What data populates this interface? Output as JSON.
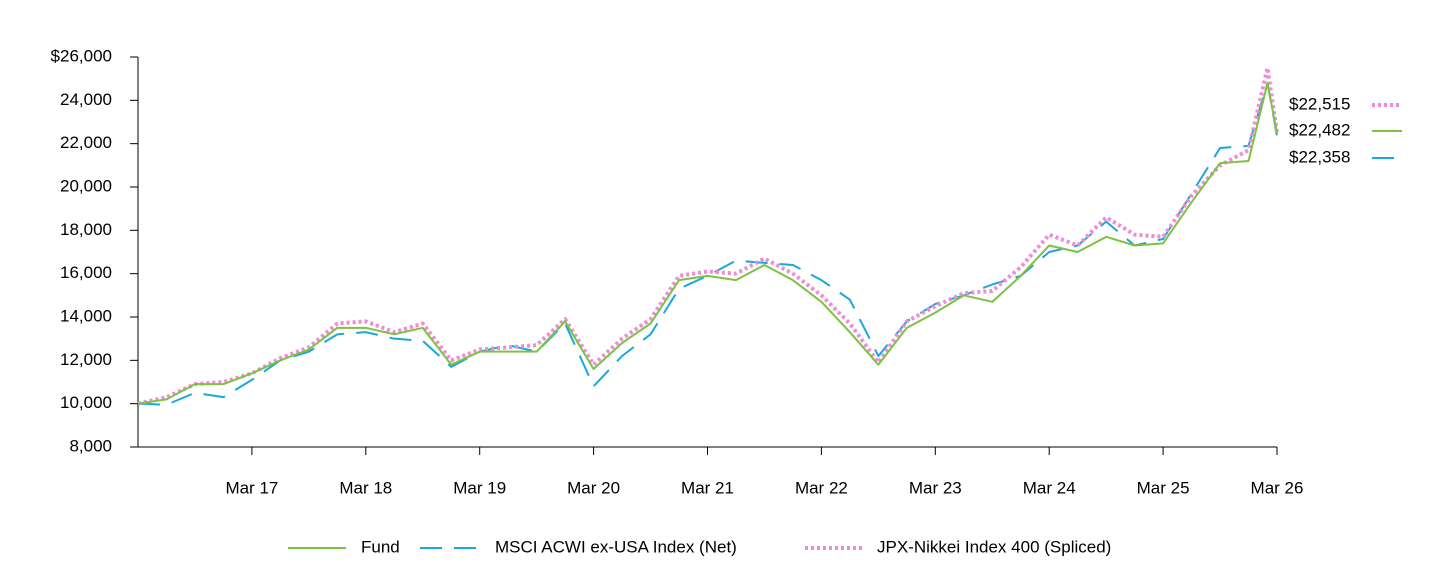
{
  "chart_data": {
    "type": "line",
    "x": [
      0,
      3,
      6,
      9,
      12,
      15,
      18,
      21,
      24,
      27,
      30,
      33,
      36,
      39,
      42,
      45,
      48,
      51,
      54,
      57,
      60,
      63,
      66,
      69,
      72,
      75,
      78,
      81,
      84,
      87,
      90,
      93,
      96,
      99,
      102,
      105,
      108,
      111,
      114,
      117,
      119,
      120
    ],
    "xlim": [
      0,
      120
    ],
    "xticks": [
      {
        "value": 12,
        "label": "Mar 17"
      },
      {
        "value": 24,
        "label": "Mar 18"
      },
      {
        "value": 36,
        "label": "Mar 19"
      },
      {
        "value": 48,
        "label": "Mar 20"
      },
      {
        "value": 60,
        "label": "Mar 21"
      },
      {
        "value": 72,
        "label": "Mar 22"
      },
      {
        "value": 84,
        "label": "Mar 23"
      },
      {
        "value": 96,
        "label": "Mar 24"
      },
      {
        "value": 108,
        "label": "Mar 25"
      },
      {
        "value": 120,
        "label": "Mar 26"
      }
    ],
    "ylim": [
      8000,
      26000
    ],
    "yticks": [
      {
        "value": 8000,
        "label": "8,000"
      },
      {
        "value": 10000,
        "label": "10,000"
      },
      {
        "value": 12000,
        "label": "12,000"
      },
      {
        "value": 14000,
        "label": "14,000"
      },
      {
        "value": 16000,
        "label": "16,000"
      },
      {
        "value": 18000,
        "label": "18,000"
      },
      {
        "value": 20000,
        "label": "20,000"
      },
      {
        "value": 22000,
        "label": "22,000"
      },
      {
        "value": 24000,
        "label": "24,000"
      },
      {
        "value": 26000,
        "label": "$26,000"
      }
    ],
    "grid": false,
    "series": [
      {
        "name": "Fund",
        "color": "#7dc242",
        "style": "solid",
        "end_label": "$22,482",
        "values": [
          10000,
          10200,
          10900,
          10900,
          11400,
          12000,
          12500,
          13500,
          13500,
          13200,
          13500,
          11800,
          12400,
          12400,
          12400,
          13800,
          11600,
          12800,
          13700,
          15700,
          15900,
          15700,
          16400,
          15700,
          14700,
          13300,
          11800,
          13500,
          14200,
          15000,
          14700,
          15900,
          17300,
          17000,
          17700,
          17300,
          17400,
          19300,
          21100,
          21200,
          24800,
          22482
        ]
      },
      {
        "name": "MSCI ACWI ex-USA Index (Net)",
        "color": "#1aa7d9",
        "style": "dashed",
        "end_label": "$22,358",
        "values": [
          10000,
          9950,
          10500,
          10300,
          11100,
          12000,
          12400,
          13200,
          13300,
          13000,
          12900,
          11700,
          12400,
          12700,
          12400,
          13700,
          10800,
          12200,
          13200,
          15300,
          15900,
          16600,
          16500,
          16400,
          15700,
          14800,
          12200,
          13800,
          14600,
          15000,
          15500,
          15900,
          17000,
          17300,
          18400,
          17300,
          17600,
          19700,
          21800,
          21900,
          24800,
          22358
        ]
      },
      {
        "name": "JPX-Nikkei Index 400 (Spliced)",
        "color": "#f08bd6",
        "style": "dotted",
        "end_label": "$22,515",
        "values": [
          10000,
          10300,
          10900,
          11000,
          11400,
          12100,
          12600,
          13700,
          13800,
          13300,
          13700,
          12000,
          12500,
          12600,
          12700,
          13900,
          11800,
          13000,
          13900,
          15900,
          16100,
          16000,
          16700,
          16000,
          15000,
          13700,
          11900,
          13800,
          14500,
          15100,
          15200,
          16300,
          17800,
          17300,
          18600,
          17800,
          17700,
          19600,
          21000,
          21700,
          25500,
          22515
        ]
      }
    ]
  }
}
